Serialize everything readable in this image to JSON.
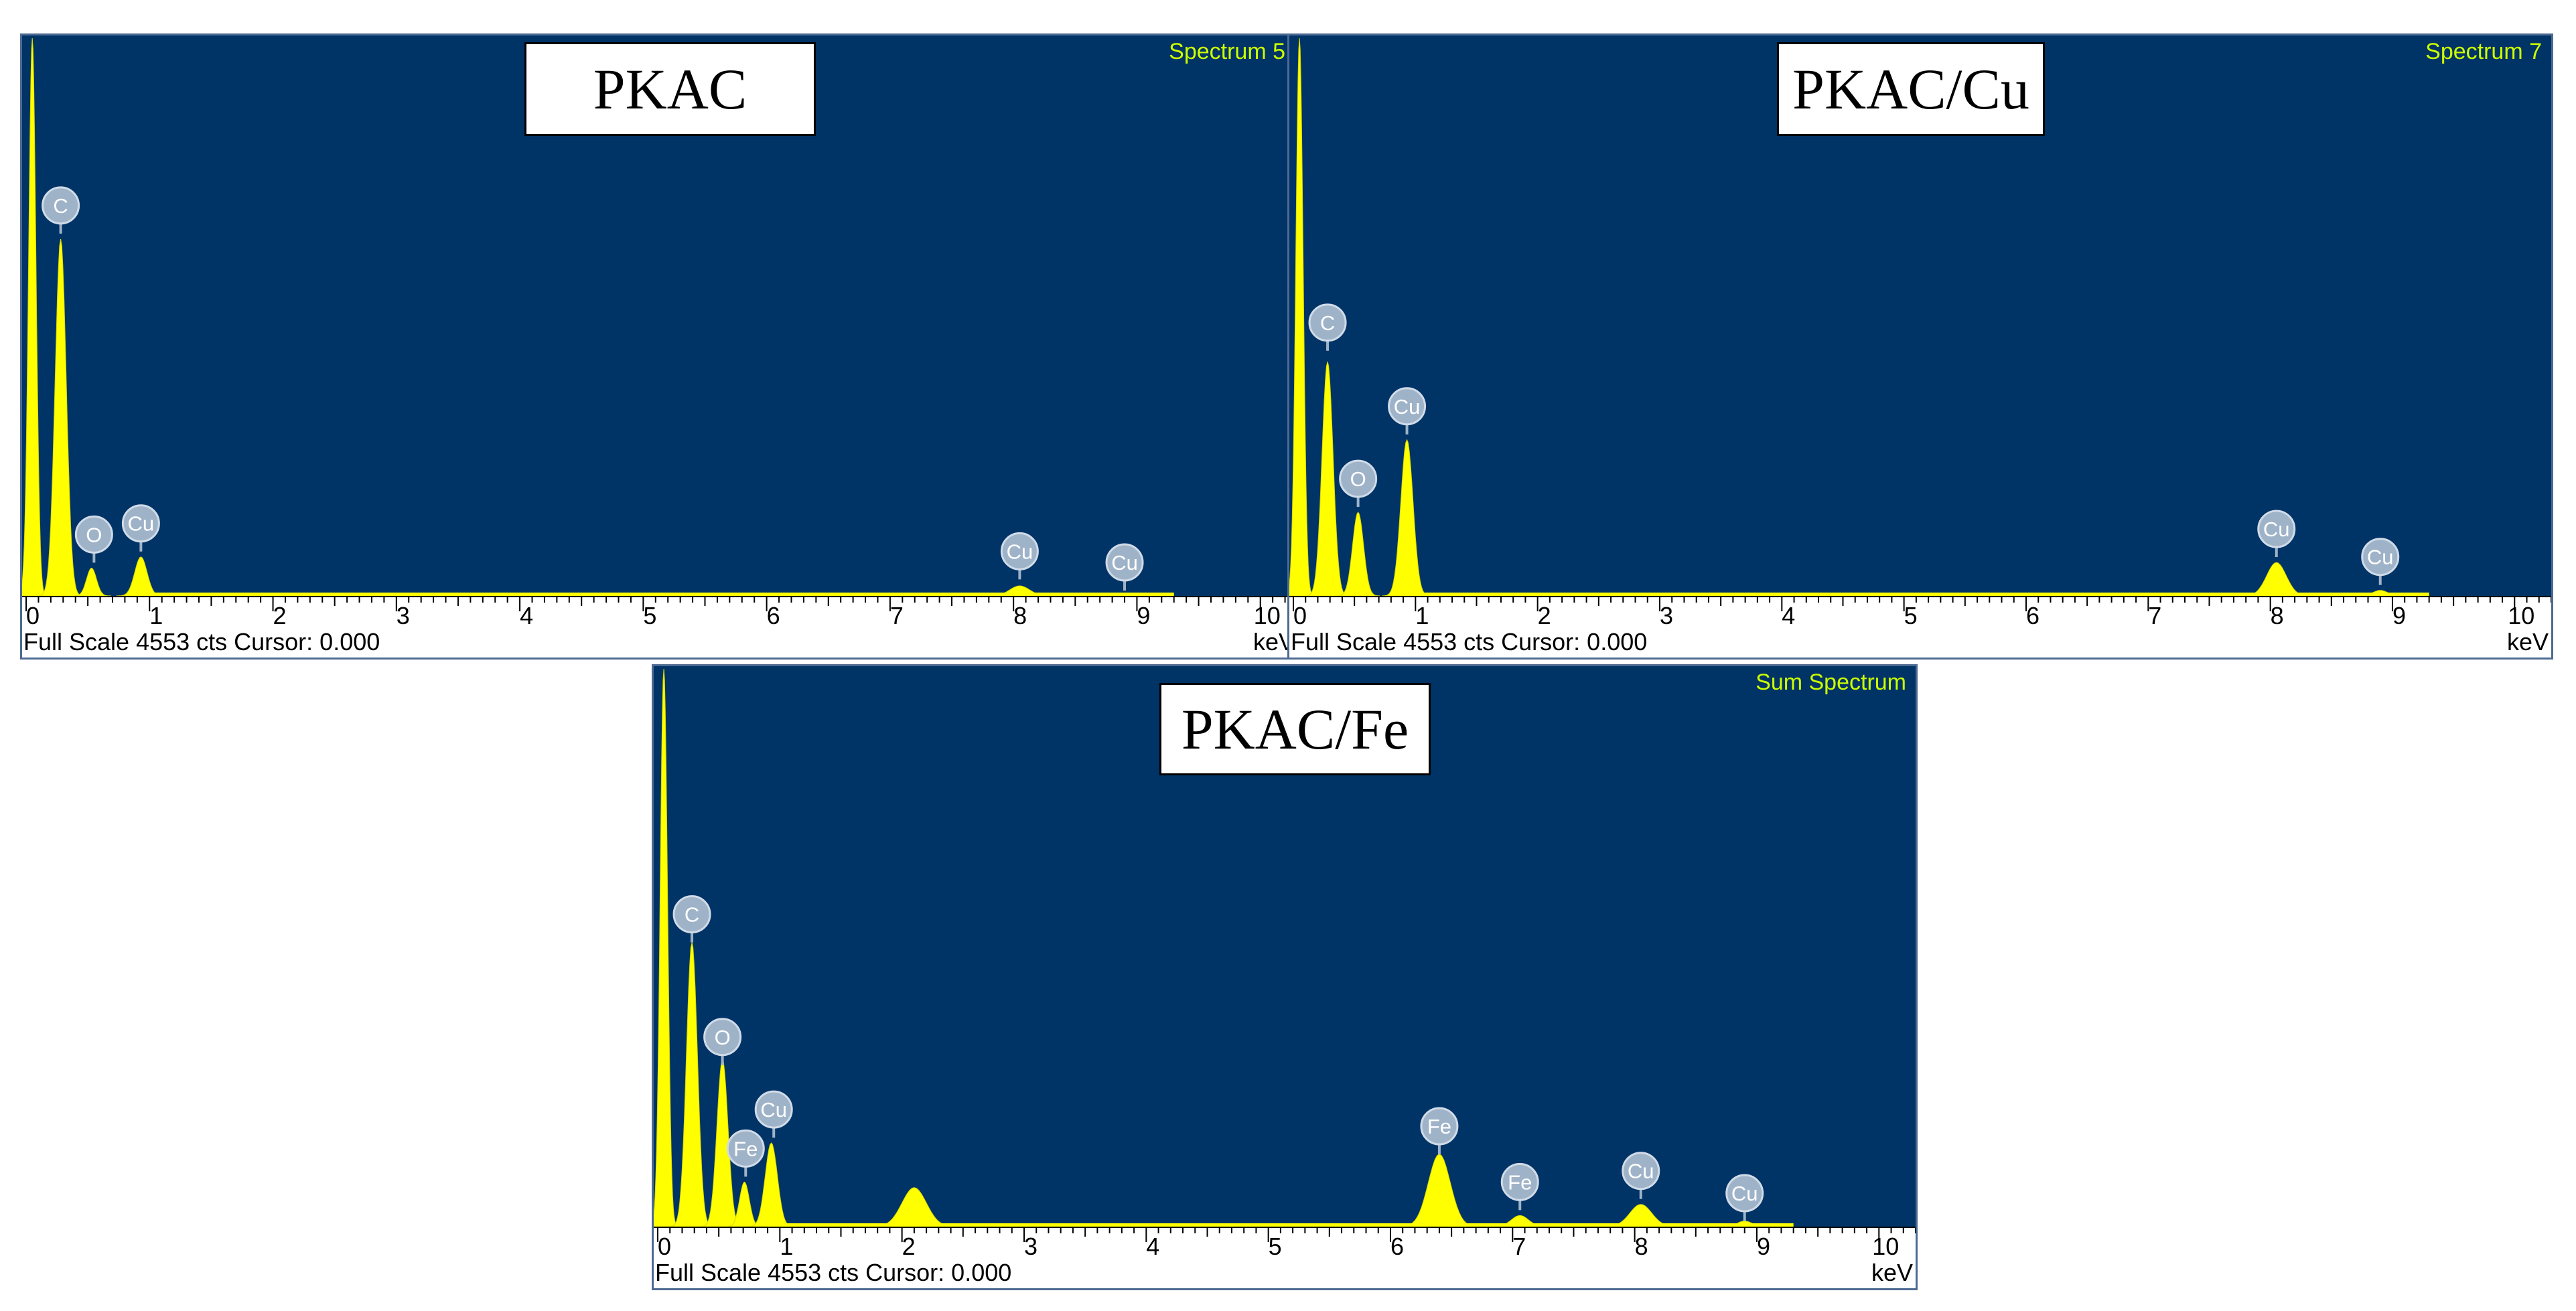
{
  "colors": {
    "plot_bg": "#003366",
    "peak_fill": "#ffff00",
    "marker_fill": "#9fb3c8",
    "marker_text": "#ffffff",
    "spec_label": "#ccff00"
  },
  "chart_data": [
    {
      "type": "area",
      "sample_label": "PKAC",
      "spectrum_name": "Spectrum 5",
      "footer": "Full Scale 4553 cts Cursor: 0.000",
      "xlabel": "keV",
      "xlim": [
        0,
        10.3
      ],
      "xticks": [
        "0",
        "1",
        "2",
        "3",
        "4",
        "5",
        "6",
        "7",
        "8",
        "9",
        "10"
      ],
      "ylim": [
        0,
        100
      ],
      "peaks": [
        {
          "x": 0.05,
          "height": 100,
          "width": 0.03
        },
        {
          "x": 0.28,
          "height": 64,
          "width": 0.045
        },
        {
          "x": 0.53,
          "height": 5,
          "width": 0.04
        },
        {
          "x": 0.93,
          "height": 7,
          "width": 0.05
        },
        {
          "x": 8.05,
          "height": 1.8,
          "width": 0.08
        },
        {
          "x": 8.9,
          "height": 0.5,
          "width": 0.06
        }
      ],
      "markers": [
        {
          "label": "C",
          "x": 0.28,
          "y": 70
        },
        {
          "label": "O",
          "x": 0.55,
          "y": 11
        },
        {
          "label": "Cu",
          "x": 0.93,
          "y": 13
        },
        {
          "label": "Cu",
          "x": 8.05,
          "y": 8
        },
        {
          "label": "Cu",
          "x": 8.9,
          "y": 6
        }
      ]
    },
    {
      "type": "area",
      "sample_label": "PKAC/Cu",
      "spectrum_name": "Spectrum 7",
      "footer": "Full Scale 4553 cts Cursor: 0.000",
      "xlabel": "keV",
      "xlim": [
        0,
        10.3
      ],
      "xticks": [
        "0",
        "1",
        "2",
        "3",
        "4",
        "5",
        "6",
        "7",
        "8",
        "9",
        "10"
      ],
      "ylim": [
        0,
        100
      ],
      "peaks": [
        {
          "x": 0.05,
          "height": 100,
          "width": 0.03
        },
        {
          "x": 0.28,
          "height": 42,
          "width": 0.045
        },
        {
          "x": 0.53,
          "height": 15,
          "width": 0.045
        },
        {
          "x": 0.93,
          "height": 28,
          "width": 0.05
        },
        {
          "x": 8.05,
          "height": 6,
          "width": 0.08
        },
        {
          "x": 8.9,
          "height": 1,
          "width": 0.06
        }
      ],
      "markers": [
        {
          "label": "C",
          "x": 0.28,
          "y": 49
        },
        {
          "label": "O",
          "x": 0.53,
          "y": 21
        },
        {
          "label": "Cu",
          "x": 0.93,
          "y": 34
        },
        {
          "label": "Cu",
          "x": 8.05,
          "y": 12
        },
        {
          "label": "Cu",
          "x": 8.9,
          "y": 7
        }
      ]
    },
    {
      "type": "area",
      "sample_label": "PKAC/Fe",
      "spectrum_name": "Sum Spectrum",
      "footer": "Full Scale 4553 cts Cursor: 0.000",
      "xlabel": "keV",
      "xlim": [
        0,
        10.3
      ],
      "xticks": [
        "0",
        "1",
        "2",
        "3",
        "4",
        "5",
        "6",
        "7",
        "8",
        "9",
        "10"
      ],
      "ylim": [
        0,
        100
      ],
      "peaks": [
        {
          "x": 0.05,
          "height": 100,
          "width": 0.03
        },
        {
          "x": 0.28,
          "height": 51,
          "width": 0.045
        },
        {
          "x": 0.53,
          "height": 30,
          "width": 0.045
        },
        {
          "x": 0.71,
          "height": 8,
          "width": 0.04
        },
        {
          "x": 0.93,
          "height": 15,
          "width": 0.05
        },
        {
          "x": 2.1,
          "height": 7,
          "width": 0.1
        },
        {
          "x": 6.4,
          "height": 13,
          "width": 0.09
        },
        {
          "x": 7.06,
          "height": 2,
          "width": 0.07
        },
        {
          "x": 8.05,
          "height": 4,
          "width": 0.09
        },
        {
          "x": 8.9,
          "height": 1,
          "width": 0.06
        }
      ],
      "markers": [
        {
          "label": "C",
          "x": 0.28,
          "y": 56
        },
        {
          "label": "O",
          "x": 0.53,
          "y": 34
        },
        {
          "label": "Fe",
          "x": 0.72,
          "y": 14
        },
        {
          "label": "Cu",
          "x": 0.95,
          "y": 21
        },
        {
          "label": "Fe",
          "x": 6.4,
          "y": 18
        },
        {
          "label": "Fe",
          "x": 7.06,
          "y": 8
        },
        {
          "label": "Cu",
          "x": 8.05,
          "y": 10
        },
        {
          "label": "Cu",
          "x": 8.9,
          "y": 6
        }
      ]
    }
  ]
}
